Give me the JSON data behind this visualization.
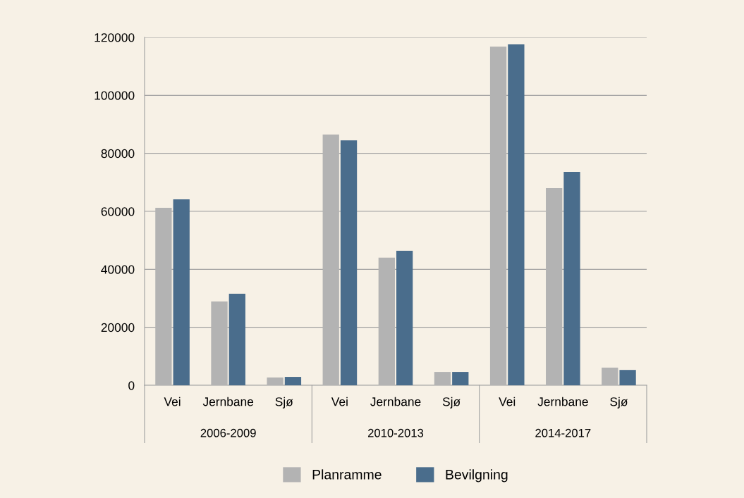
{
  "chart_data": {
    "type": "bar",
    "categories": [
      "Vei",
      "Jernbane",
      "Sjø",
      "Vei",
      "Jernbane",
      "Sjø",
      "Vei",
      "Jernbane",
      "Sjø"
    ],
    "series": [
      {
        "name": "Planramme",
        "color": "#b3b3b3",
        "values": [
          61200,
          28900,
          2700,
          86500,
          44000,
          4600,
          116800,
          68000,
          6100
        ]
      },
      {
        "name": "Bevilgning",
        "color": "#4a6d8c",
        "values": [
          64100,
          31600,
          2900,
          84500,
          46400,
          4600,
          117600,
          73600,
          5300
        ]
      }
    ],
    "annotations": [
      "2006-2009",
      "2010-2013",
      "2014-2017"
    ],
    "ylim": [
      0,
      120000
    ],
    "yticks": [
      0,
      20000,
      40000,
      60000,
      80000,
      100000,
      120000
    ],
    "grid": "y",
    "legend": "bottom"
  }
}
